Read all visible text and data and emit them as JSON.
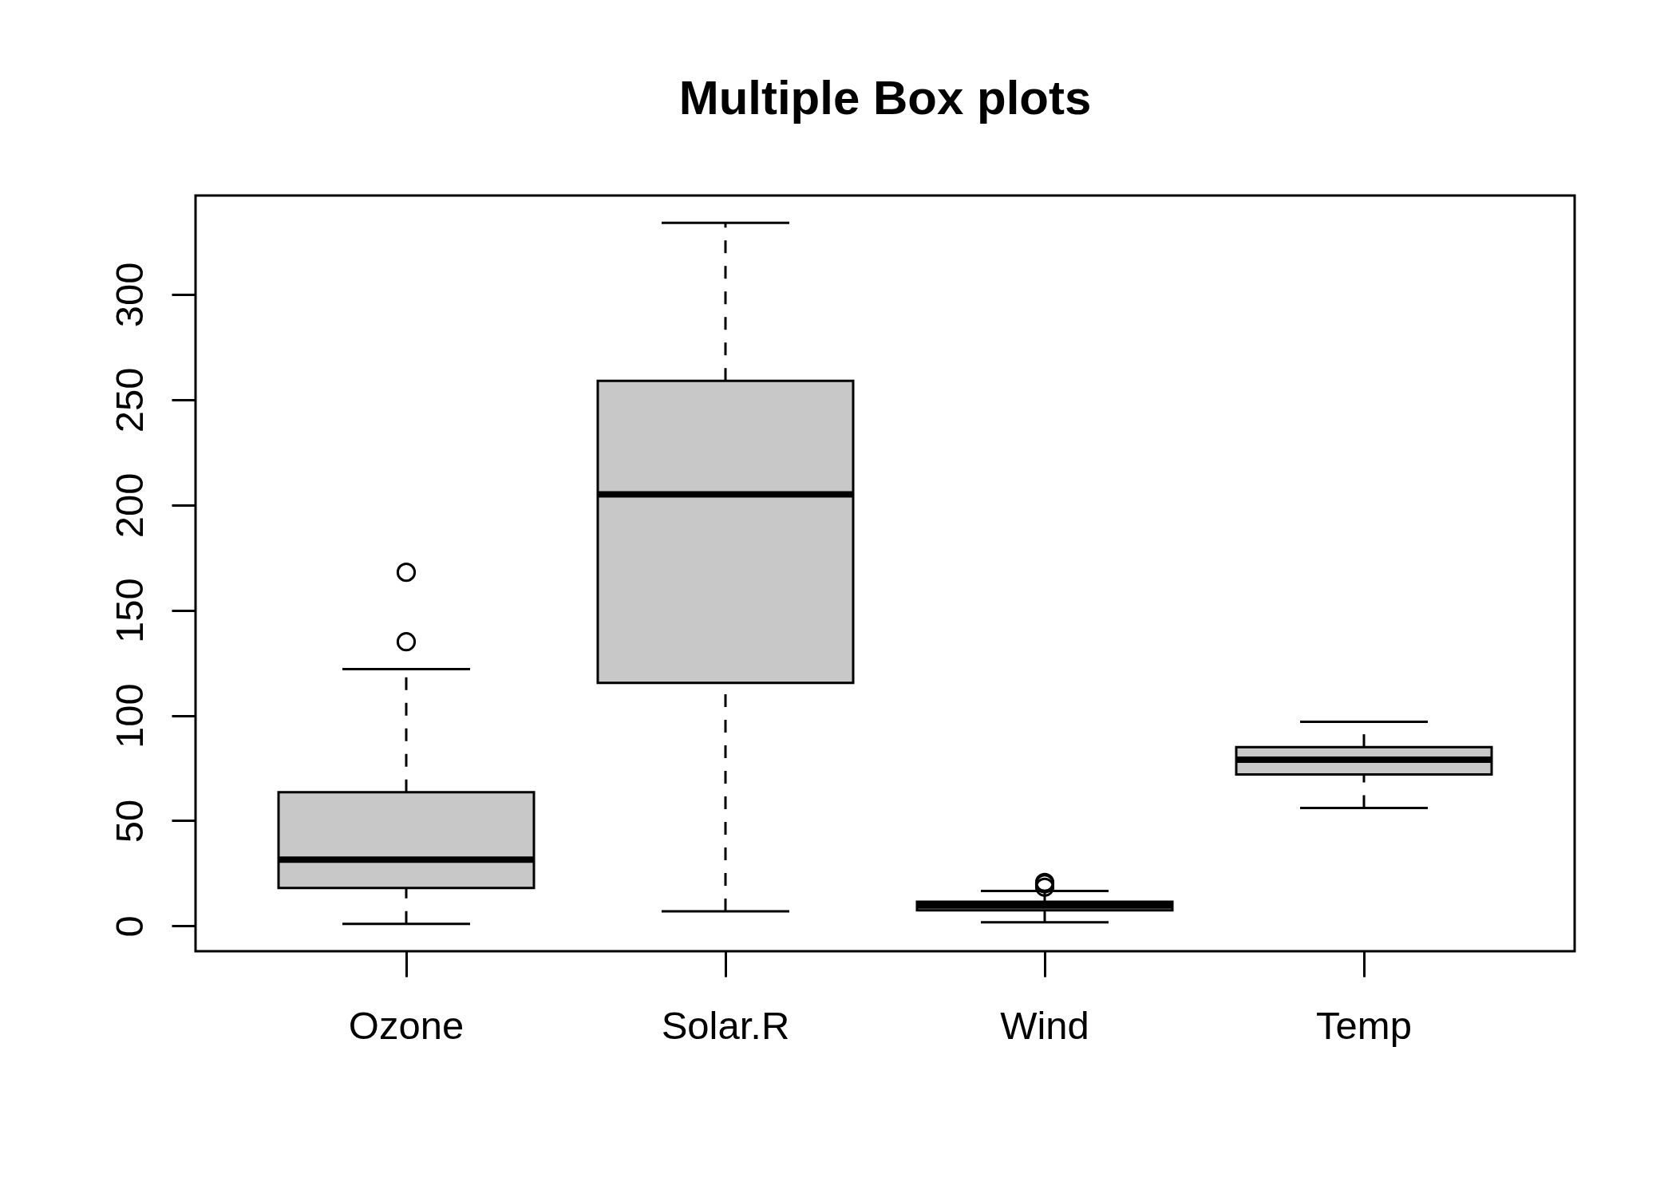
{
  "chart_data": {
    "type": "box",
    "title": "Multiple Box plots",
    "categories": [
      "Ozone",
      "Solar.R",
      "Wind",
      "Temp"
    ],
    "color": "#c8c8c8",
    "boxes": [
      {
        "low": 1,
        "q1": 18,
        "median": 31.5,
        "q3": 63.5,
        "high": 122,
        "outliers": [
          135,
          168
        ]
      },
      {
        "low": 7,
        "q1": 115.5,
        "median": 205,
        "q3": 259,
        "high": 334
      },
      {
        "low": 1.7,
        "q1": 7.4,
        "median": 9.7,
        "q3": 11.5,
        "high": 16.6,
        "outliers": [
          18.4,
          20.1,
          20.7
        ]
      },
      {
        "low": 56,
        "q1": 72,
        "median": 79,
        "q3": 85,
        "high": 97
      }
    ],
    "ylim": [
      -12,
      347
    ],
    "yticks": [
      0,
      50,
      100,
      150,
      200,
      250,
      300
    ]
  }
}
